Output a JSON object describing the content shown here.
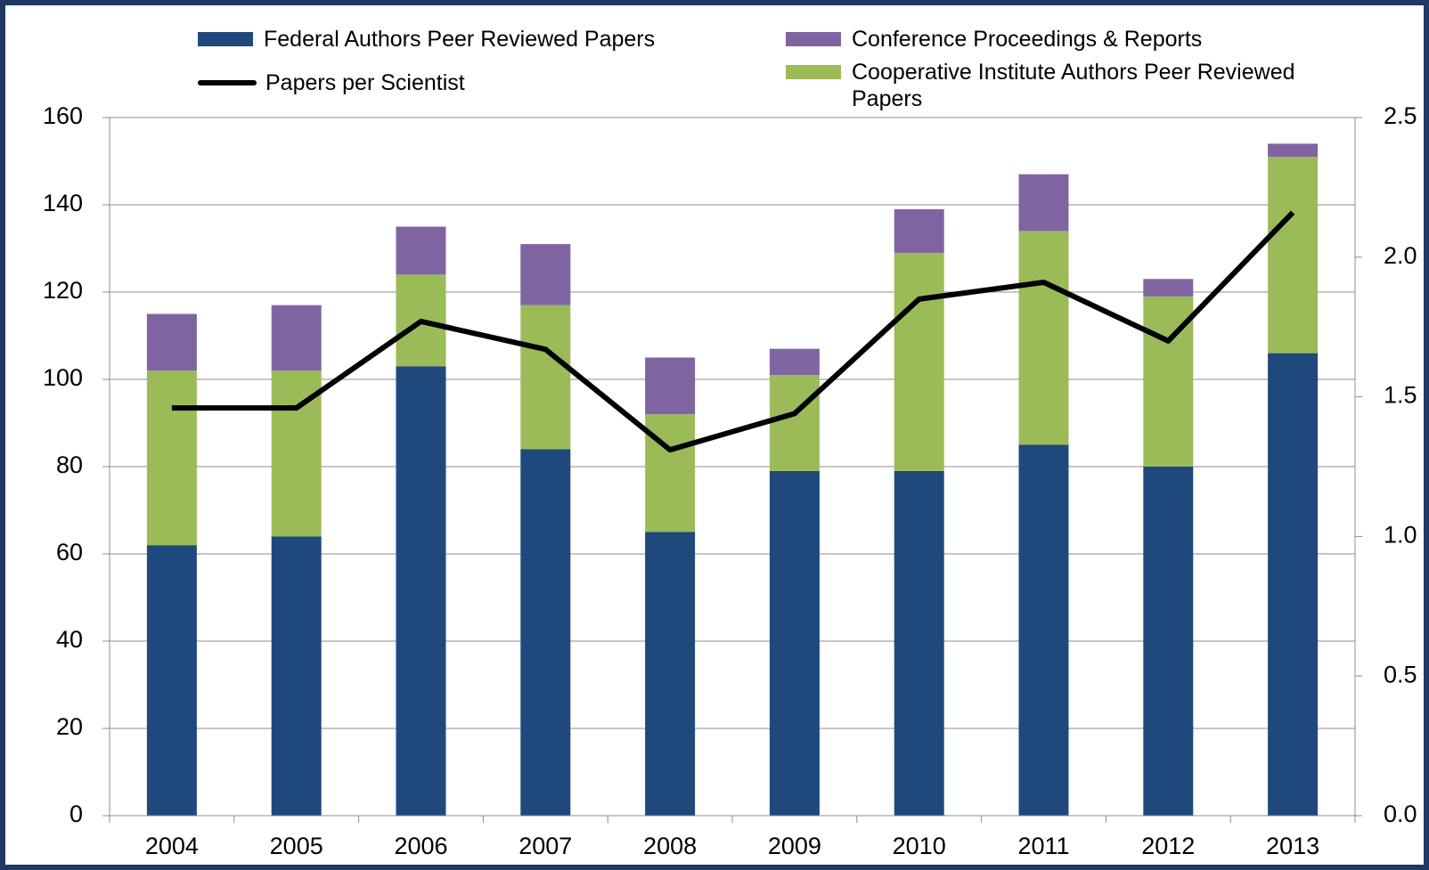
{
  "chart_data": {
    "type": "stacked_bar_line",
    "categories": [
      "2004",
      "2005",
      "2006",
      "2007",
      "2008",
      "2009",
      "2010",
      "2011",
      "2012",
      "2013"
    ],
    "series": [
      {
        "name": "Federal Authors Peer Reviewed Papers",
        "color": "#1f497d",
        "values": [
          62,
          64,
          103,
          84,
          65,
          79,
          79,
          85,
          80,
          106
        ]
      },
      {
        "name": "Cooperative Institute Authors Peer Reviewed Papers",
        "color": "#9bbb59",
        "values": [
          40,
          38,
          21,
          33,
          27,
          22,
          50,
          49,
          39,
          45
        ]
      },
      {
        "name": "Conference Proceedings & Reports",
        "color": "#8064a2",
        "values": [
          13,
          15,
          11,
          14,
          13,
          6,
          10,
          13,
          4,
          3
        ]
      },
      {
        "name": "Papers per Scientist",
        "color": "#000000",
        "axis": "y2",
        "values": [
          1.46,
          1.46,
          1.77,
          1.67,
          1.31,
          1.44,
          1.85,
          1.91,
          1.7,
          2.16
        ]
      }
    ],
    "ylim": [
      0,
      160
    ],
    "yticks": [
      0,
      20,
      40,
      60,
      80,
      100,
      120,
      140,
      160
    ],
    "y2lim": [
      0,
      2.5
    ],
    "y2ticks": [
      {
        "value": 0,
        "label": "0.0"
      },
      0.5,
      {
        "value": 1,
        "label": "1.0"
      },
      1.5,
      {
        "value": 2,
        "label": "2.0"
      },
      2.5
    ],
    "grid": true,
    "legend": "top"
  }
}
